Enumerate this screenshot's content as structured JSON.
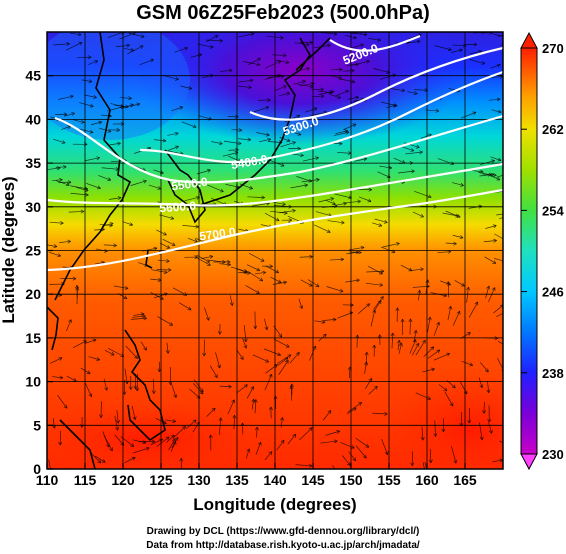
{
  "title": "GSM 06Z25Feb2023 (500.0hPa)",
  "x_axis": {
    "label": "Longitude (degrees)",
    "range": [
      110,
      170
    ],
    "ticks": [
      110,
      115,
      120,
      125,
      130,
      135,
      140,
      145,
      150,
      155,
      160,
      165
    ]
  },
  "y_axis": {
    "label": "Latitude (degrees)",
    "range": [
      0,
      50
    ],
    "ticks": [
      0,
      5,
      10,
      15,
      20,
      25,
      30,
      35,
      40,
      45
    ]
  },
  "colorbar": {
    "range": [
      230,
      270
    ],
    "ticks": [
      230,
      238,
      246,
      254,
      262,
      270
    ],
    "colors": [
      "#c800c8",
      "#7a00d8",
      "#2020ff",
      "#0078ff",
      "#00c8ff",
      "#20e0c0",
      "#40e040",
      "#a0e000",
      "#f0e000",
      "#ffa000",
      "#ff6000",
      "#ff2000"
    ]
  },
  "contours": [
    {
      "label": "5200.0"
    },
    {
      "label": "5300.0"
    },
    {
      "label": "5400.0"
    },
    {
      "label": "5500.0"
    },
    {
      "label": "5600.0"
    },
    {
      "label": "5700.0"
    }
  ],
  "credits": [
    "Drawing by DCL (https://www.gfd-dennou.org/library/dcl/)",
    "Data from http://database.rish.kyoto-u.ac.jp/arch/jmadata/"
  ]
}
